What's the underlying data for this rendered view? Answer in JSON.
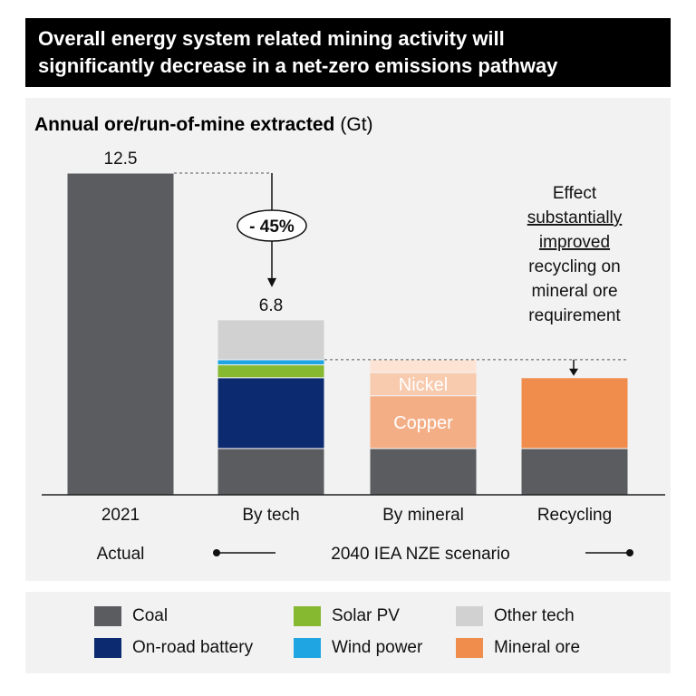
{
  "banner": {
    "title_line1": "Overall energy system related mining activity will",
    "title_line2": "significantly decrease in a net-zero emissions pathway"
  },
  "chart_data": {
    "type": "bar",
    "stacked": true,
    "title": "Annual ore/run-of-mine extracted",
    "unit": "(Gt)",
    "categories": [
      "2021",
      "By tech",
      "By mineral",
      "Recycling"
    ],
    "totals_labels": {
      "2021": "12.5",
      "By tech": "6.8"
    },
    "ylim": [
      0,
      12.5
    ],
    "grid": false,
    "series": [
      {
        "name": "Coal",
        "color": "#5b5c60",
        "values": [
          12.5,
          1.8,
          1.8,
          1.8
        ]
      },
      {
        "name": "On-road battery",
        "color": "#0b2a6f",
        "values": [
          0,
          2.75,
          0,
          0
        ]
      },
      {
        "name": "Solar PV",
        "color": "#86b830",
        "values": [
          0,
          0.5,
          0,
          0
        ]
      },
      {
        "name": "Wind power",
        "color": "#1ea5e2",
        "values": [
          0,
          0.2,
          0,
          0
        ]
      },
      {
        "name": "Other tech",
        "color": "#d1d1d1",
        "values": [
          0,
          1.55,
          0,
          0
        ]
      },
      {
        "name": "Copper",
        "color": "#f4ae86",
        "values": [
          0,
          0,
          2.05,
          0
        ]
      },
      {
        "name": "Nickel",
        "color": "#f8caae",
        "values": [
          0,
          0,
          0.9,
          0
        ]
      },
      {
        "name": "",
        "color": "#fde3d3",
        "values": [
          0,
          0,
          0.5,
          0
        ]
      },
      {
        "name": "Mineral ore",
        "color": "#f08c4c",
        "values": [
          0,
          0,
          0,
          2.75
        ]
      }
    ],
    "annotations": {
      "reduction": "- 45%",
      "effect_lines": [
        "Effect",
        "substantially",
        "improved",
        "recycling on",
        "mineral ore",
        "requirement"
      ],
      "actual_label": "Actual",
      "scenario_label": "2040 IEA NZE scenario"
    },
    "legend": {
      "placement": "bottom",
      "items": [
        "Coal",
        "Solar PV",
        "Other tech",
        "On-road battery",
        "Wind power",
        "Mineral ore"
      ]
    }
  }
}
